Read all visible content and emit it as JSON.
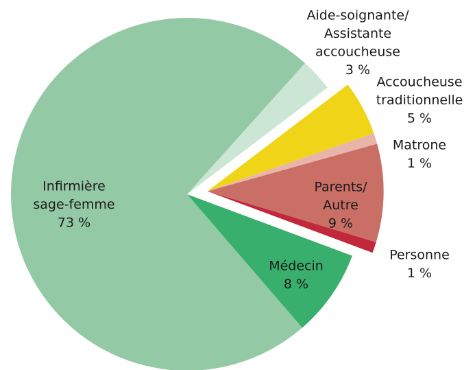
{
  "chart_data": {
    "type": "pie",
    "categories": [
      [
        "Aide-soignante/",
        "Assistante",
        "accoucheuse"
      ],
      [
        "Accoucheuse",
        "traditionnelle"
      ],
      [
        "Matrone"
      ],
      [
        "Parents/",
        "Autre"
      ],
      [
        "Personne"
      ],
      [
        "Médecin"
      ],
      [
        "Infirmière",
        "sage-femme"
      ]
    ],
    "values": [
      3,
      5,
      1,
      9,
      1,
      8,
      73
    ],
    "value_labels": [
      "3 %",
      "5 %",
      "1 %",
      "9 %",
      "1 %",
      "8 %",
      "73 %"
    ],
    "colors": [
      "#cce6d6",
      "#f0d417",
      "#e9b5aa",
      "#c96f66",
      "#c1283b",
      "#38af6c",
      "#94c9a6"
    ],
    "exploded": [
      false,
      true,
      true,
      true,
      true,
      false,
      false
    ]
  }
}
